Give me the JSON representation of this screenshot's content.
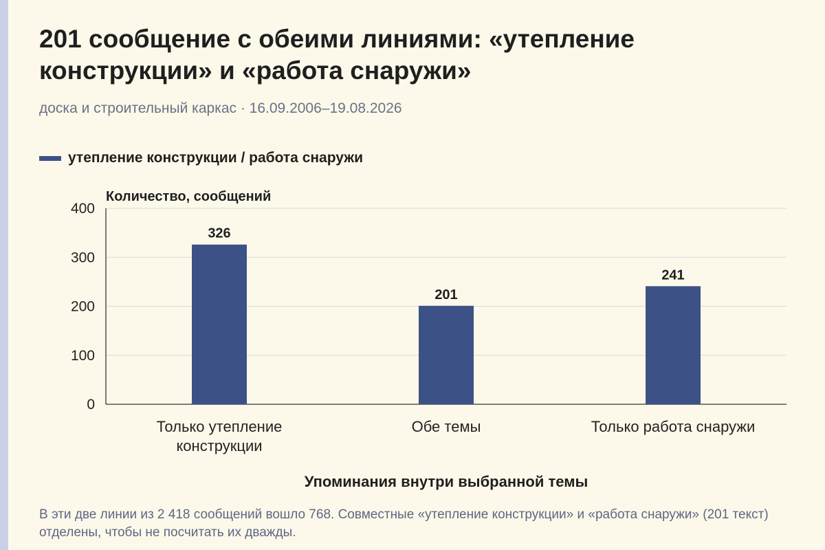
{
  "title": "201 сообщение с обеими линиями: «утепление конструкции» и «работа снаружи»",
  "subtitle": "доска и строительный каркас · 16.09.2006–19.08.2026",
  "footnote": "В эти две линии из 2 418 сообщений вошло 768. Совместные «утепление конструкции» и «работа снаружи» (201 текст) отделены, чтобы не посчитать их дважды.",
  "colors": {
    "bar": "#3c5286",
    "background": "#fdf9ea",
    "stripe": "#c9d0e8"
  },
  "chart_data": {
    "type": "bar",
    "title": "201 сообщение с обеими линиями: «утепление конструкции» и «работа снаружи»",
    "subtitle": "доска и строительный каркас · 16.09.2006–19.08.2026",
    "categories": [
      [
        "Только утепление",
        "конструкции"
      ],
      [
        "Обе темы"
      ],
      [
        "Только работа снаружи"
      ]
    ],
    "series": [
      {
        "name": "утепление конструкции / работа снаружи",
        "values": [
          326,
          201,
          241
        ]
      }
    ],
    "xlabel": "Упоминания внутри выбранной темы",
    "ylabel": "Количество, сообщений",
    "ylim": [
      0,
      400
    ],
    "yticks": [
      0,
      100,
      200,
      300,
      400
    ],
    "grid": true,
    "legend": "top-left"
  }
}
